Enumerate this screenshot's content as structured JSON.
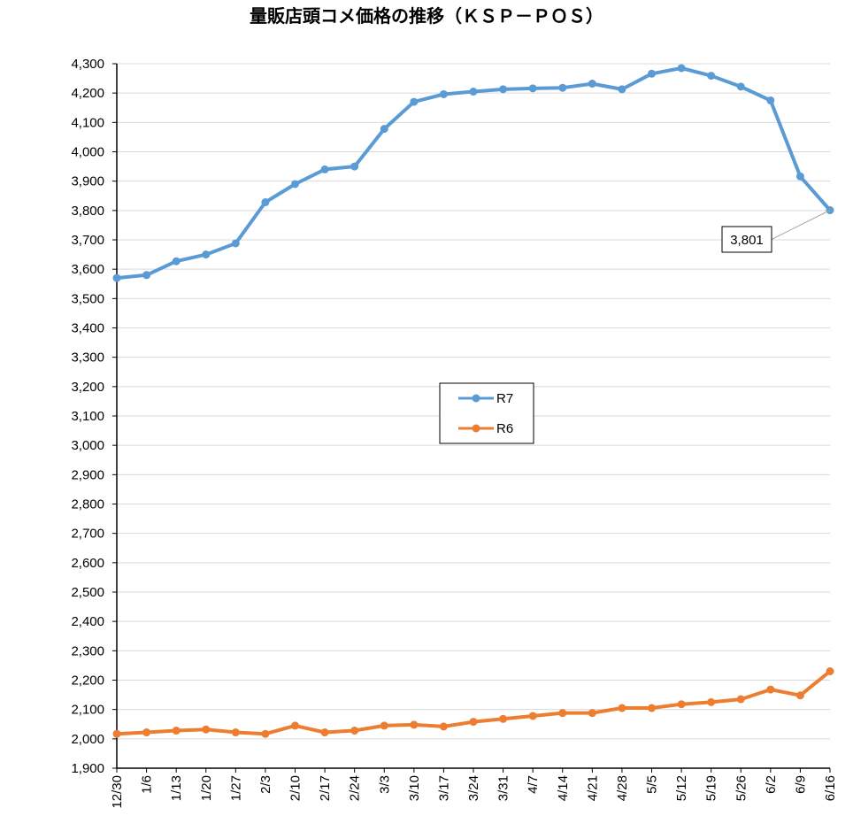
{
  "chart_data": {
    "type": "line",
    "title": "量販店頭コメ価格の推移（ＫＳＰ－ＰＯＳ）",
    "categories": [
      "12/30",
      "1/6",
      "1/13",
      "1/20",
      "1/27",
      "2/3",
      "2/10",
      "2/17",
      "2/24",
      "3/3",
      "3/10",
      "3/17",
      "3/24",
      "3/31",
      "4/7",
      "4/14",
      "4/21",
      "4/28",
      "5/5",
      "5/12",
      "5/19",
      "5/26",
      "6/2",
      "6/9",
      "6/16"
    ],
    "ylim": [
      1900,
      4300
    ],
    "yticks": [
      1900,
      2000,
      2100,
      2200,
      2300,
      2400,
      2500,
      2600,
      2700,
      2800,
      2900,
      3000,
      3100,
      3200,
      3300,
      3400,
      3500,
      3600,
      3700,
      3800,
      3900,
      4000,
      4100,
      4200,
      4300
    ],
    "ytick_labels": [
      "1,900",
      "2,000",
      "2,100",
      "2,200",
      "2,300",
      "2,400",
      "2,500",
      "2,600",
      "2,700",
      "2,800",
      "2,900",
      "3,000",
      "3,100",
      "3,200",
      "3,300",
      "3,400",
      "3,500",
      "3,600",
      "3,700",
      "3,800",
      "3,900",
      "4,000",
      "4,100",
      "4,200",
      "4,300"
    ],
    "grid": true,
    "legend_position": "center",
    "series": [
      {
        "name": "R7",
        "color": "#5b9bd5",
        "values": [
          3570,
          3580,
          3627,
          3650,
          3688,
          3828,
          3890,
          3940,
          3950,
          4078,
          4170,
          4196,
          4205,
          4213,
          4216,
          4218,
          4232,
          4213,
          4266,
          4285,
          4259,
          4222,
          4175,
          3916,
          3801
        ]
      },
      {
        "name": "R6",
        "color": "#ed7d31",
        "values": [
          2017,
          2022,
          2028,
          2032,
          2022,
          2017,
          2045,
          2022,
          2028,
          2045,
          2048,
          2042,
          2058,
          2068,
          2078,
          2088,
          2088,
          2105,
          2105,
          2118,
          2125,
          2135,
          2168,
          2148,
          2230
        ]
      }
    ],
    "annotation": {
      "text": "3,801",
      "series": "R7",
      "index": 24
    }
  }
}
